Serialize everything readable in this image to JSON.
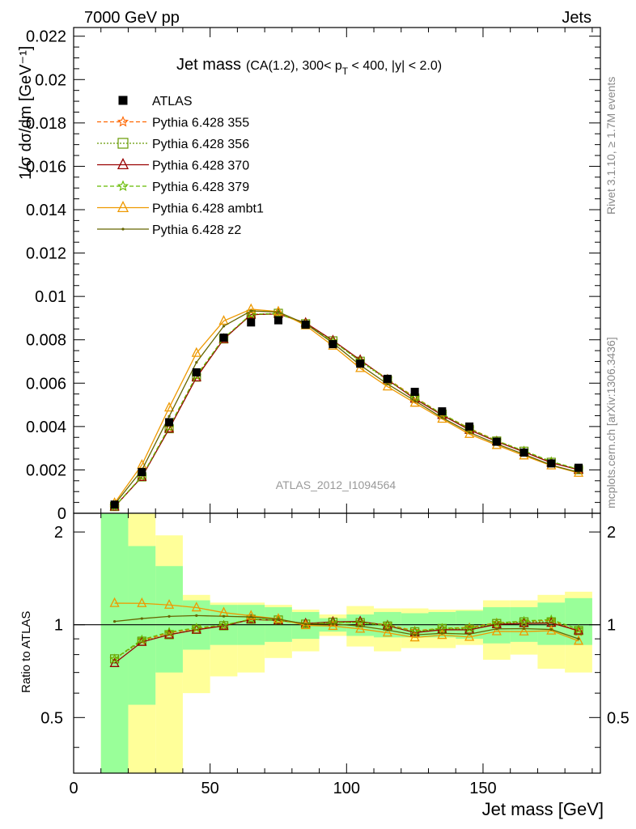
{
  "header": {
    "left": "7000 GeV pp",
    "right": "Jets"
  },
  "side": {
    "rivet": "Rivet 3.1.10, ≥ 1.7M events",
    "mcplots": "mcplots.cern.ch [arXiv:1306.3436]"
  },
  "chart_data": {
    "type": "line",
    "title_main": "Jet mass",
    "title_sub": "(CA(1.2), 300< p",
    "title_sub_index": "T",
    "title_sub_tail": " < 400, |y| < 2.0)",
    "analysis_label": "ATLAS_2012_I1094564",
    "ylabel": "1/σ dσ/dm [GeV⁻¹]",
    "ylabel_ratio": "Ratio to ATLAS",
    "xlabel": "Jet mass [GeV]",
    "xlim": [
      0,
      193
    ],
    "ylim_main": [
      0,
      0.0224
    ],
    "ylim_ratio": [
      0.33,
      2.3
    ],
    "x_ticks": [
      "0",
      "50",
      "100",
      "150"
    ],
    "y_ticks_main": [
      "0",
      "0.002",
      "0.004",
      "0.006",
      "0.008",
      "0.01",
      "0.012",
      "0.014",
      "0.016",
      "0.018",
      "0.02",
      "0.022"
    ],
    "y_ticks_ratio": [
      "0.5",
      "1",
      "2"
    ],
    "bin_edges": [
      10,
      20,
      30,
      40,
      50,
      60,
      70,
      80,
      90,
      100,
      110,
      120,
      130,
      140,
      150,
      160,
      170,
      180,
      190
    ],
    "x": [
      15,
      25,
      35,
      45,
      55,
      65,
      75,
      85,
      95,
      105,
      115,
      125,
      135,
      145,
      155,
      165,
      175,
      185
    ],
    "atlas": {
      "name": "ATLAS",
      "color": "#000000",
      "values": [
        0.0004,
        0.0019,
        0.0042,
        0.0065,
        0.0081,
        0.0088,
        0.0089,
        0.0087,
        0.0078,
        0.0069,
        0.0062,
        0.0056,
        0.0047,
        0.004,
        0.0033,
        0.0028,
        0.0023,
        0.0021
      ],
      "band_stat": [
        [
          0.0,
          2.3
        ],
        [
          0.55,
          1.8
        ],
        [
          0.7,
          1.55
        ],
        [
          0.83,
          1.2
        ],
        [
          0.86,
          1.16
        ],
        [
          0.86,
          1.16
        ],
        [
          0.88,
          1.14
        ],
        [
          0.9,
          1.1
        ],
        [
          0.95,
          1.05
        ],
        [
          0.92,
          1.08
        ],
        [
          0.91,
          1.1
        ],
        [
          0.91,
          1.09
        ],
        [
          0.91,
          1.1
        ],
        [
          0.9,
          1.11
        ],
        [
          0.87,
          1.14
        ],
        [
          0.88,
          1.14
        ],
        [
          0.86,
          1.18
        ],
        [
          0.86,
          1.22
        ]
      ],
      "band_total": [
        [
          0.0,
          2.3
        ],
        [
          0.3,
          2.3
        ],
        [
          0.33,
          1.95
        ],
        [
          0.6,
          1.25
        ],
        [
          0.68,
          1.18
        ],
        [
          0.7,
          1.18
        ],
        [
          0.78,
          1.16
        ],
        [
          0.82,
          1.12
        ],
        [
          0.92,
          1.08
        ],
        [
          0.85,
          1.15
        ],
        [
          0.82,
          1.13
        ],
        [
          0.84,
          1.13
        ],
        [
          0.84,
          1.12
        ],
        [
          0.86,
          1.12
        ],
        [
          0.77,
          1.2
        ],
        [
          0.8,
          1.2
        ],
        [
          0.72,
          1.25
        ],
        [
          0.7,
          1.28
        ]
      ]
    },
    "series": [
      {
        "name": "Pythia 6.428 355",
        "color": "#ff6600",
        "dash": "5,3",
        "marker": "star",
        "values": [
          0.00031,
          0.00169,
          0.00395,
          0.00633,
          0.00806,
          0.00915,
          0.00921,
          0.00876,
          0.00795,
          0.00704,
          0.0062,
          0.00535,
          0.00458,
          0.00392,
          0.00335,
          0.00287,
          0.00238,
          0.00199
        ]
      },
      {
        "name": "Pythia 6.428 356",
        "color": "#669900",
        "dash": "2,2",
        "marker": "square",
        "values": [
          0.00031,
          0.00168,
          0.0039,
          0.00628,
          0.00804,
          0.00917,
          0.00922,
          0.00874,
          0.00795,
          0.00701,
          0.00614,
          0.00531,
          0.00457,
          0.00387,
          0.00333,
          0.00286,
          0.00235,
          0.00201
        ]
      },
      {
        "name": "Pythia 6.428 370",
        "color": "#990000",
        "dash": "",
        "marker": "triangle",
        "values": [
          0.0003,
          0.00167,
          0.0039,
          0.00626,
          0.00803,
          0.00916,
          0.00919,
          0.00878,
          0.00797,
          0.00707,
          0.00616,
          0.00528,
          0.00453,
          0.00385,
          0.00331,
          0.00283,
          0.00233,
          0.00201
        ]
      },
      {
        "name": "Pythia 6.428 379",
        "color": "#66bb00",
        "dash": "5,3",
        "marker": "star",
        "values": [
          0.00031,
          0.0017,
          0.00398,
          0.00635,
          0.00808,
          0.00918,
          0.0092,
          0.00874,
          0.00793,
          0.00702,
          0.00618,
          0.00532,
          0.00458,
          0.0039,
          0.00334,
          0.00288,
          0.00239,
          0.00203
        ]
      },
      {
        "name": "Pythia 6.428 ambt1",
        "color": "#ee9900",
        "dash": "",
        "marker": "triangle-open",
        "values": [
          0.00047,
          0.00223,
          0.00487,
          0.00739,
          0.00887,
          0.00941,
          0.0093,
          0.00866,
          0.00772,
          0.00669,
          0.00584,
          0.00509,
          0.00435,
          0.00365,
          0.00314,
          0.00266,
          0.0022,
          0.00186
        ]
      },
      {
        "name": "Pythia 6.428 z2",
        "color": "#666600",
        "dash": "",
        "marker": "dot",
        "values": [
          0.00041,
          0.00199,
          0.00447,
          0.00696,
          0.00863,
          0.00933,
          0.00928,
          0.00874,
          0.00785,
          0.00683,
          0.00596,
          0.00519,
          0.00441,
          0.00373,
          0.0032,
          0.00272,
          0.00222,
          0.00189
        ]
      }
    ]
  }
}
